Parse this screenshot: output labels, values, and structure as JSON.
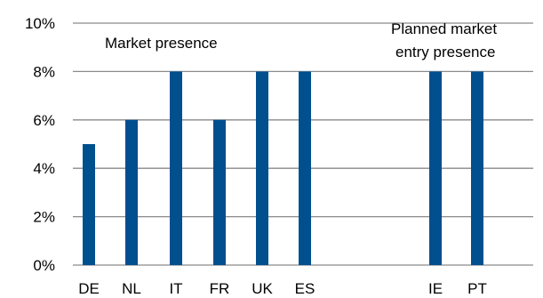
{
  "chart_data": {
    "type": "bar",
    "categories": [
      "DE",
      "NL",
      "IT",
      "FR",
      "UK",
      "ES",
      "IE",
      "PT"
    ],
    "series": [
      {
        "values": [
          5,
          6,
          8,
          6,
          8,
          8,
          8,
          8
        ]
      }
    ],
    "y_tick_labels": [
      "0%",
      "2%",
      "4%",
      "6%",
      "8%",
      "10%"
    ],
    "y_ticks": [
      0,
      2,
      4,
      6,
      8,
      10
    ],
    "ylim": [
      0,
      10
    ],
    "grid": true,
    "bar_color": "#004f8f",
    "grid_color": "#8a8a8a",
    "annotations": {
      "market_presence": "Market presence",
      "planned_line1": "Planned market",
      "planned_line2": "entry presence"
    }
  }
}
